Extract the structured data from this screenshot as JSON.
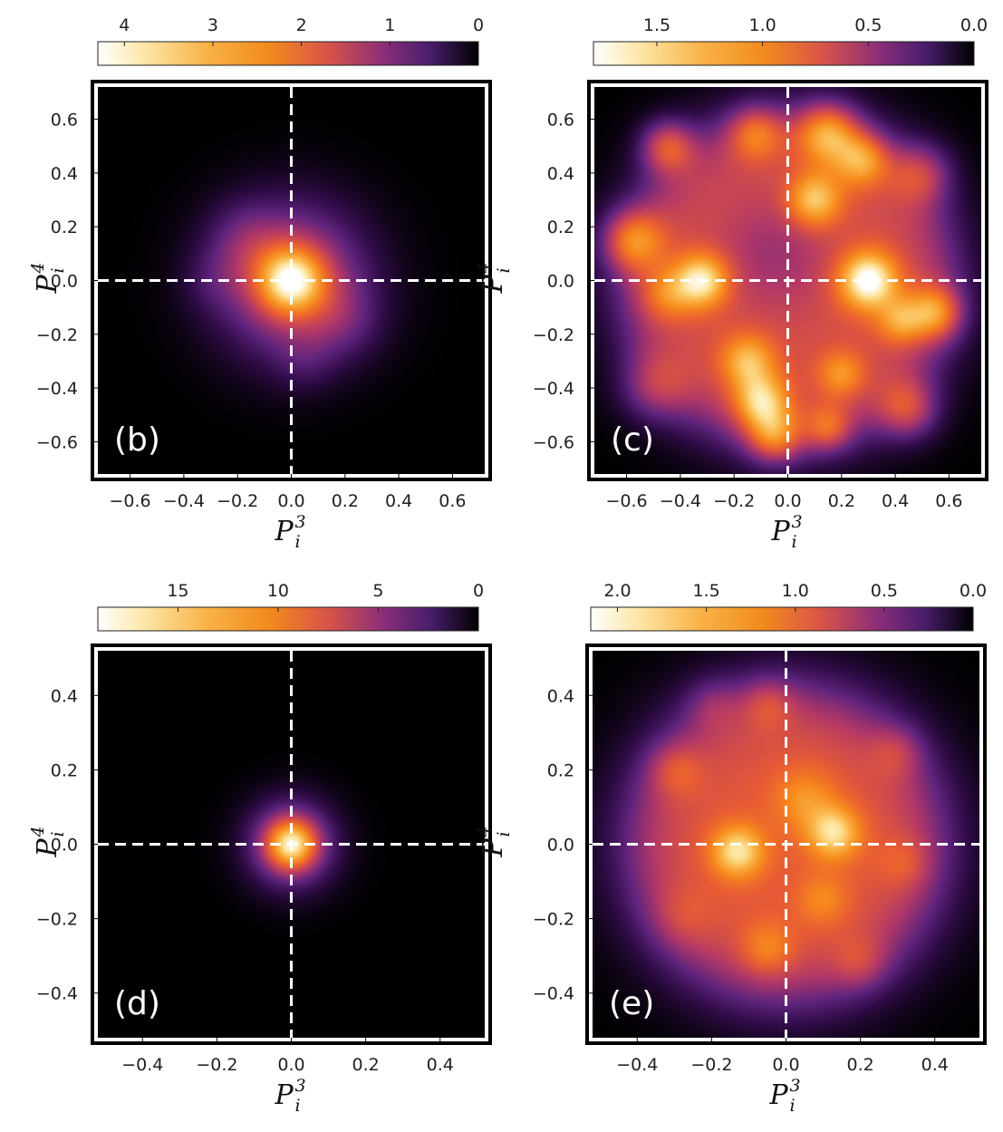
{
  "chart_data": [
    {
      "type": "heatmap",
      "panel_label": "(b)",
      "xlabel": "P",
      "xlabel_sup": "3",
      "xlabel_sub": "i",
      "ylabel": "P",
      "ylabel_sup": "4",
      "ylabel_sub": "i",
      "xlim": [
        -0.72,
        0.72
      ],
      "ylim": [
        -0.72,
        0.72
      ],
      "xticks": [
        -0.6,
        -0.4,
        -0.2,
        0.0,
        0.2,
        0.4,
        0.6
      ],
      "yticks": [
        -0.6,
        -0.4,
        -0.2,
        0.0,
        0.2,
        0.4,
        0.6
      ],
      "xtick_labels": [
        "−0.6",
        "−0.4",
        "−0.2",
        "0.0",
        "0.2",
        "0.4",
        "0.6"
      ],
      "ytick_labels": [
        "−0.6",
        "−0.4",
        "−0.2",
        "0.0",
        "0.2",
        "0.4",
        "0.6"
      ],
      "colorbar": {
        "range": [
          0,
          4.3
        ],
        "ticks": [
          4,
          3,
          2,
          1,
          0
        ],
        "tick_labels": [
          "4",
          "3",
          "2",
          "1",
          "0"
        ]
      },
      "blobs": [
        {
          "x": 0.0,
          "y": 0.0,
          "sigma": 0.085,
          "amp": 2.4
        },
        {
          "x": 0.0,
          "y": 0.0,
          "sigma": 0.2,
          "amp": 2.1
        },
        {
          "x": -0.18,
          "y": 0.16,
          "sigma": 0.1,
          "amp": 0.5
        },
        {
          "x": 0.2,
          "y": -0.15,
          "sigma": 0.1,
          "amp": 0.5
        },
        {
          "x": 0.05,
          "y": -0.3,
          "sigma": 0.08,
          "amp": 0.35
        },
        {
          "x": -0.3,
          "y": 0.0,
          "sigma": 0.08,
          "amp": 0.3
        }
      ]
    },
    {
      "type": "heatmap",
      "panel_label": "(c)",
      "xlabel": "P",
      "xlabel_sup": "3",
      "xlabel_sub": "i",
      "ylabel": "P",
      "ylabel_sup": "4",
      "ylabel_sub": "i",
      "xlim": [
        -0.72,
        0.72
      ],
      "ylim": [
        -0.72,
        0.72
      ],
      "xticks": [
        -0.6,
        -0.4,
        -0.2,
        0.0,
        0.2,
        0.4,
        0.6
      ],
      "yticks": [
        -0.6,
        -0.4,
        -0.2,
        0.0,
        0.2,
        0.4,
        0.6
      ],
      "xtick_labels": [
        "−0.6",
        "−0.4",
        "−0.2",
        "0.0",
        "0.2",
        "0.4",
        "0.6"
      ],
      "ytick_labels": [
        "−0.6",
        "−0.4",
        "−0.2",
        "0.0",
        "0.2",
        "0.4",
        "0.6"
      ],
      "colorbar": {
        "range": [
          0,
          1.8
        ],
        "ticks": [
          1.5,
          1.0,
          0.5,
          0.0
        ],
        "tick_labels": [
          "1.5",
          "1.0",
          "0.5",
          "0.0"
        ]
      },
      "base": {
        "amp": 0.9,
        "radius": 0.62,
        "edge": 0.07
      },
      "blobs": [
        {
          "x": -0.45,
          "y": 0.5,
          "sigma": 0.07,
          "amp": 0.7
        },
        {
          "x": -0.12,
          "y": 0.55,
          "sigma": 0.07,
          "amp": 0.55
        },
        {
          "x": 0.15,
          "y": 0.55,
          "sigma": 0.08,
          "amp": 0.8
        },
        {
          "x": 0.28,
          "y": 0.45,
          "sigma": 0.07,
          "amp": 0.65
        },
        {
          "x": 0.1,
          "y": 0.3,
          "sigma": 0.07,
          "amp": 0.7
        },
        {
          "x": 0.5,
          "y": 0.4,
          "sigma": 0.08,
          "amp": 0.5
        },
        {
          "x": -0.58,
          "y": 0.15,
          "sigma": 0.08,
          "amp": 0.75
        },
        {
          "x": -0.32,
          "y": 0.0,
          "sigma": 0.07,
          "amp": 0.85
        },
        {
          "x": -0.45,
          "y": -0.05,
          "sigma": 0.07,
          "amp": 0.4
        },
        {
          "x": 0.3,
          "y": 0.0,
          "sigma": 0.075,
          "amp": 1.0
        },
        {
          "x": 0.55,
          "y": -0.12,
          "sigma": 0.07,
          "amp": 0.75
        },
        {
          "x": 0.42,
          "y": -0.15,
          "sigma": 0.06,
          "amp": 0.5
        },
        {
          "x": -0.15,
          "y": -0.3,
          "sigma": 0.07,
          "amp": 0.6
        },
        {
          "x": -0.1,
          "y": -0.45,
          "sigma": 0.07,
          "amp": 0.75
        },
        {
          "x": -0.05,
          "y": -0.58,
          "sigma": 0.07,
          "amp": 0.7
        },
        {
          "x": 0.15,
          "y": -0.55,
          "sigma": 0.06,
          "amp": 0.5
        },
        {
          "x": 0.45,
          "y": -0.48,
          "sigma": 0.08,
          "amp": 0.6
        },
        {
          "x": 0.2,
          "y": -0.35,
          "sigma": 0.06,
          "amp": 0.45
        },
        {
          "x": -0.5,
          "y": -0.4,
          "sigma": 0.09,
          "amp": 0.4
        },
        {
          "x": -0.05,
          "y": 0.1,
          "sigma": 0.15,
          "amp": -0.25
        }
      ]
    },
    {
      "type": "heatmap",
      "panel_label": "(d)",
      "xlabel": "P",
      "xlabel_sup": "3",
      "xlabel_sub": "i",
      "ylabel": "P",
      "ylabel_sup": "4",
      "ylabel_sub": "i",
      "xlim": [
        -0.52,
        0.52
      ],
      "ylim": [
        -0.52,
        0.52
      ],
      "xticks": [
        -0.4,
        -0.2,
        0.0,
        0.2,
        0.4
      ],
      "yticks": [
        -0.4,
        -0.2,
        0.0,
        0.2,
        0.4
      ],
      "xtick_labels": [
        "−0.4",
        "−0.2",
        "0.0",
        "0.2",
        "0.4"
      ],
      "ytick_labels": [
        "−0.4",
        "−0.2",
        "0.0",
        "0.2",
        "0.4"
      ],
      "colorbar": {
        "range": [
          0,
          19
        ],
        "ticks": [
          15,
          10,
          5,
          0
        ],
        "tick_labels": [
          "15",
          "10",
          "5",
          "0"
        ]
      },
      "blobs": [
        {
          "x": 0.0,
          "y": 0.0,
          "sigma": 0.045,
          "amp": 10.0
        },
        {
          "x": 0.0,
          "y": 0.0,
          "sigma": 0.085,
          "amp": 8.5
        }
      ]
    },
    {
      "type": "heatmap",
      "panel_label": "(e)",
      "xlabel": "P",
      "xlabel_sup": "3",
      "xlabel_sub": "i",
      "ylabel": "P",
      "ylabel_sup": "4",
      "ylabel_sub": "i",
      "xlim": [
        -0.52,
        0.52
      ],
      "ylim": [
        -0.52,
        0.52
      ],
      "xticks": [
        -0.4,
        -0.2,
        0.0,
        0.2,
        0.4
      ],
      "yticks": [
        -0.4,
        -0.2,
        0.0,
        0.2,
        0.4
      ],
      "xtick_labels": [
        "−0.4",
        "−0.2",
        "0.0",
        "0.2",
        "0.4"
      ],
      "ytick_labels": [
        "−0.4",
        "−0.2",
        "0.0",
        "0.2",
        "0.4"
      ],
      "colorbar": {
        "range": [
          0,
          2.15
        ],
        "ticks": [
          2.0,
          1.5,
          1.0,
          0.5,
          0.0
        ],
        "tick_labels": [
          "2.0",
          "1.5",
          "1.0",
          "0.5",
          "0.0"
        ]
      },
      "base": {
        "amp": 1.15,
        "radius": 0.42,
        "edge": 0.06
      },
      "blobs": [
        {
          "x": -0.13,
          "y": -0.02,
          "sigma": 0.05,
          "amp": 0.85
        },
        {
          "x": 0.13,
          "y": 0.03,
          "sigma": 0.05,
          "amp": 0.8
        },
        {
          "x": 0.05,
          "y": 0.12,
          "sigma": 0.06,
          "amp": 0.4
        },
        {
          "x": -0.3,
          "y": 0.2,
          "sigma": 0.05,
          "amp": 0.35
        },
        {
          "x": 0.3,
          "y": 0.25,
          "sigma": 0.05,
          "amp": 0.3
        },
        {
          "x": -0.05,
          "y": -0.28,
          "sigma": 0.05,
          "amp": 0.4
        },
        {
          "x": 0.1,
          "y": -0.15,
          "sigma": 0.05,
          "amp": 0.35
        },
        {
          "x": 0.2,
          "y": -0.32,
          "sigma": 0.05,
          "amp": 0.3
        },
        {
          "x": -0.05,
          "y": 0.38,
          "sigma": 0.05,
          "amp": 0.35
        },
        {
          "x": -0.2,
          "y": 0.38,
          "sigma": 0.05,
          "amp": 0.25
        },
        {
          "x": -0.28,
          "y": -0.2,
          "sigma": 0.06,
          "amp": 0.2
        },
        {
          "x": 0.32,
          "y": -0.05,
          "sigma": 0.05,
          "amp": 0.25
        }
      ]
    }
  ]
}
